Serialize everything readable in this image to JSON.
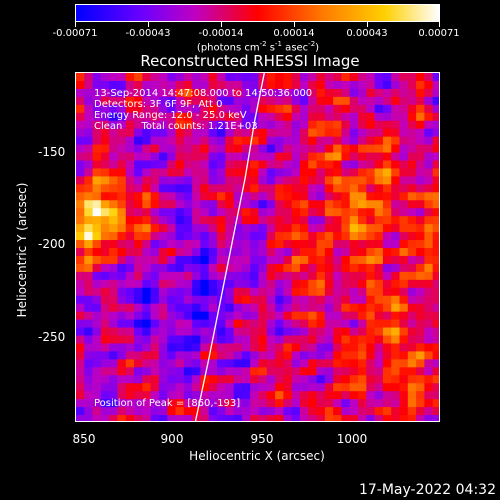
{
  "colorbar": {
    "ticks": [
      "-0.00071",
      "-0.00043",
      "-0.00014",
      "0.00014",
      "0.00043",
      "0.00071"
    ],
    "unit_main": "(photons cm",
    "unit_exp1": "-2",
    "unit_mid": " s",
    "unit_exp2": "-1",
    "unit_mid2": " asec",
    "unit_exp3": "-2",
    "unit_end": ")"
  },
  "chart_data": {
    "type": "heatmap",
    "title": "Reconstructed RHESSI Image",
    "xlabel": "Heliocentric X (arcsec)",
    "ylabel": "Heliocentric Y (arcsec)",
    "xlim": [
      846,
      1036
    ],
    "ylim": [
      -298,
      -115
    ],
    "xticks": [
      850,
      900,
      950,
      1000
    ],
    "yticks": [
      -150,
      -200,
      -250
    ],
    "colormap_range": [
      -0.00071,
      0.00071
    ],
    "peak_position": [
      860,
      -193
    ],
    "limb_curve": {
      "x": [
        908,
        915,
        921,
        928,
        934,
        939,
        944
      ],
      "y": [
        -298,
        -265,
        -235,
        -200,
        -170,
        -140,
        -115
      ]
    }
  },
  "info": {
    "line1": "13-Sep-2014 14:47:08.000 to 14:50:36.000",
    "line2": "Detectors: 3F 6F 9F, Att 0",
    "line3": "Energy Range: 12.0 - 25.0 keV",
    "line4": "Clean      Total counts: 1.21E+03",
    "peak": "Position of Peak = [860,-193]"
  },
  "footer": "17-May-2022 04:32"
}
